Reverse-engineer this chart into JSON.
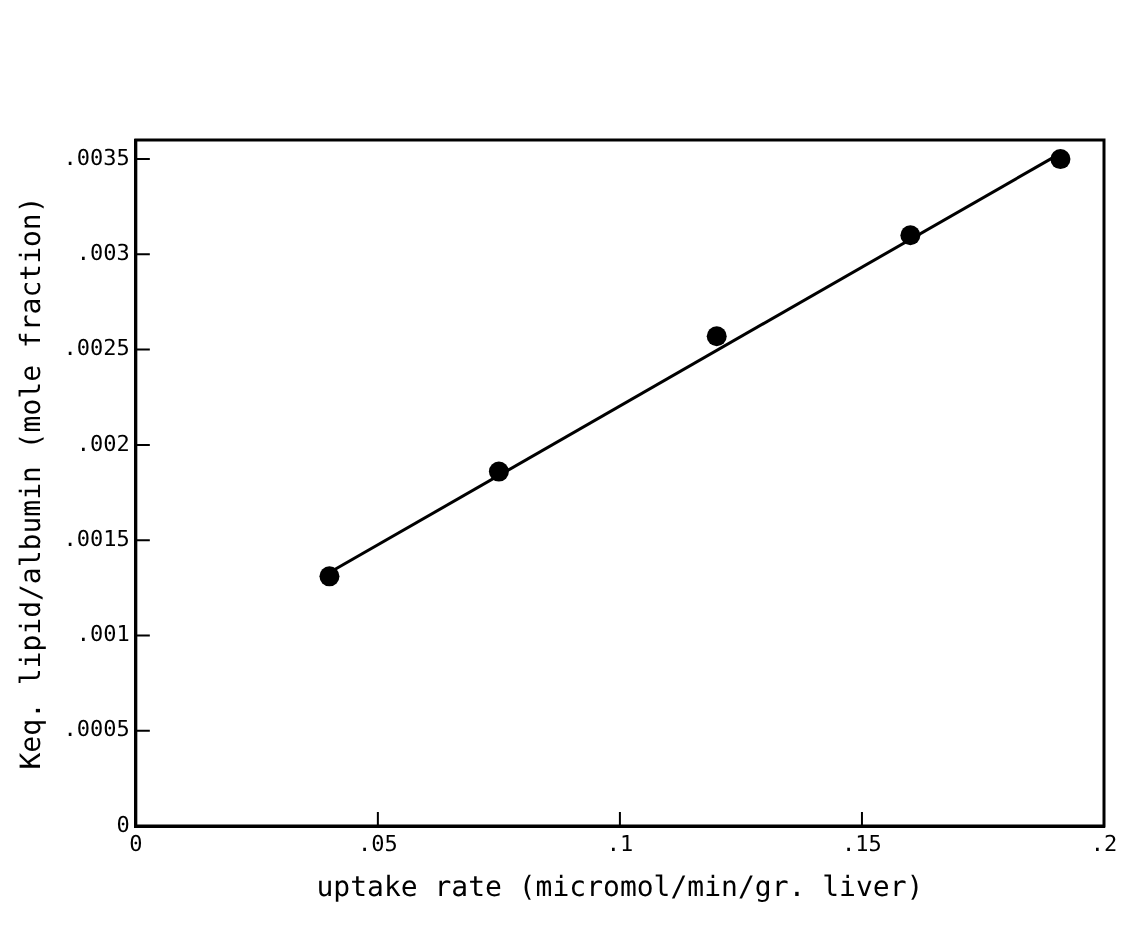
{
  "chart_data": {
    "type": "scatter",
    "xlabel": "uptake rate (micromol/min/gr. liver)",
    "ylabel": "Keq. lipid/albumin (mole fraction)",
    "xlim": [
      0,
      0.2
    ],
    "ylim": [
      0,
      0.0036
    ],
    "xticks": [
      {
        "value": 0,
        "label": "0"
      },
      {
        "value": 0.05,
        "label": ".05"
      },
      {
        "value": 0.1,
        "label": ".1"
      },
      {
        "value": 0.15,
        "label": ".15"
      },
      {
        "value": 0.2,
        "label": ".2"
      }
    ],
    "yticks": [
      {
        "value": 0,
        "label": "0"
      },
      {
        "value": 0.0005,
        "label": ".0005"
      },
      {
        "value": 0.001,
        "label": ".001"
      },
      {
        "value": 0.0015,
        "label": ".0015"
      },
      {
        "value": 0.002,
        "label": ".002"
      },
      {
        "value": 0.0025,
        "label": ".0025"
      },
      {
        "value": 0.003,
        "label": ".003"
      },
      {
        "value": 0.0035,
        "label": ".0035"
      }
    ],
    "grid": false,
    "legend": false,
    "marker": "circle",
    "series": [
      {
        "type": "scatter",
        "color": "#000000",
        "x": [
          0.04,
          0.075,
          0.12,
          0.16,
          0.191
        ],
        "values": [
          0.00131,
          0.00186,
          0.00257,
          0.0031,
          0.0035
        ]
      },
      {
        "type": "line",
        "color": "#000000",
        "marker": "none",
        "line_style": "solid",
        "x": [
          0.04,
          0.191
        ],
        "values": [
          0.00133,
          0.00353
        ]
      }
    ]
  }
}
